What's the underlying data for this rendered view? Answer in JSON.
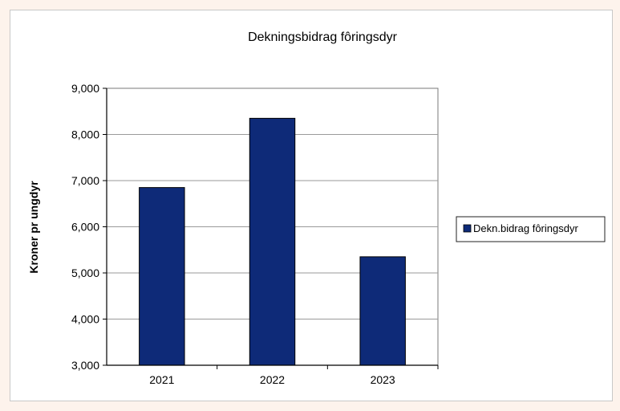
{
  "chart_data": {
    "type": "bar",
    "title": "Dekningsbidrag fôringsdyr",
    "xlabel": "",
    "ylabel": "Kroner pr ungdyr",
    "categories": [
      "2021",
      "2022",
      "2023"
    ],
    "series": [
      {
        "name": "Dekn.bidrag fôringsdyr",
        "values": [
          6850,
          8350,
          5350
        ],
        "color": "#0e2a78"
      }
    ],
    "ylim": [
      3000,
      9000
    ],
    "yticks": [
      3000,
      4000,
      5000,
      6000,
      7000,
      8000,
      9000
    ],
    "ytick_labels": [
      "3,000",
      "4,000",
      "5,000",
      "6,000",
      "7,000",
      "8,000",
      "9,000"
    ],
    "grid": true,
    "legend_position": "right"
  }
}
